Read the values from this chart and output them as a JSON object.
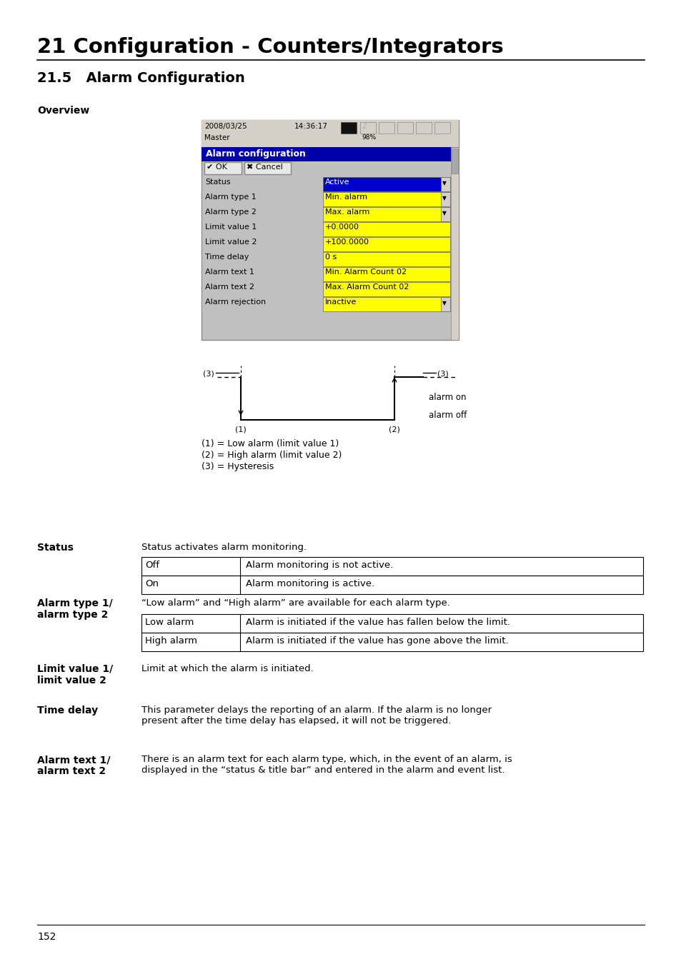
{
  "title": "21 Configuration - Counters/Integrators",
  "section": "21.5   Alarm Configuration",
  "overview_label": "Overview",
  "screenshot": {
    "header_date": "2008/03/25",
    "header_time": "14:36:17",
    "header_master": "Master",
    "header_battery": "98%",
    "title_bar": "Alarm configuration",
    "title_bar_color": "#0000aa",
    "ok_btn": "✔ OK",
    "cancel_btn": "✖ Cancel",
    "rows": [
      {
        "label": "Status",
        "value": "Active",
        "value_bg": "#0000cc",
        "value_color": "white",
        "has_arrow": true
      },
      {
        "label": "Alarm type 1",
        "value": "Min. alarm",
        "value_bg": "#ffff00",
        "value_color": "black",
        "has_arrow": true
      },
      {
        "label": "Alarm type 2",
        "value": "Max. alarm",
        "value_bg": "#ffff00",
        "value_color": "black",
        "has_arrow": true
      },
      {
        "label": "Limit value 1",
        "value": "+0.0000",
        "value_bg": "#ffff00",
        "value_color": "black",
        "has_arrow": false
      },
      {
        "label": "Limit value 2",
        "value": "+100.0000",
        "value_bg": "#ffff00",
        "value_color": "black",
        "has_arrow": false
      },
      {
        "label": "Time delay",
        "value": "0 s",
        "value_bg": "#ffff00",
        "value_color": "black",
        "has_arrow": false
      },
      {
        "label": "Alarm text 1",
        "value": "Min. Alarm Count 02",
        "value_bg": "#ffff00",
        "value_color": "black",
        "has_arrow": false
      },
      {
        "label": "Alarm text 2",
        "value": "Max. Alarm Count 02",
        "value_bg": "#ffff00",
        "value_color": "black",
        "has_arrow": false
      },
      {
        "label": "Alarm rejection",
        "value": "Inactive",
        "value_bg": "#ffff00",
        "value_color": "black",
        "has_arrow": true
      }
    ],
    "bg_color": "#c0c0c0",
    "label_color": "black"
  },
  "diagram_legend": [
    "(1) = Low alarm (limit value 1)",
    "(2) = High alarm (limit value 2)",
    "(3) = Hysteresis"
  ],
  "status_label": "Status",
  "status_desc": "Status activates alarm monitoring.",
  "status_table": [
    {
      "col1": "Off",
      "col2": "Alarm monitoring is not active."
    },
    {
      "col1": "On",
      "col2": "Alarm monitoring is active."
    }
  ],
  "alarm_type_label": "Alarm type 1/\nalarm type 2",
  "alarm_type_desc": "“Low alarm” and “High alarm” are available for each alarm type.",
  "alarm_type_table": [
    {
      "col1": "Low alarm",
      "col2": "Alarm is initiated if the value has fallen below the limit."
    },
    {
      "col1": "High alarm",
      "col2": "Alarm is initiated if the value has gone above the limit."
    }
  ],
  "limit_label": "Limit value 1/\nlimit value 2",
  "limit_desc": "Limit at which the alarm is initiated.",
  "time_delay_label": "Time delay",
  "time_delay_desc": "This parameter delays the reporting of an alarm. If the alarm is no longer\npresent after the time delay has elapsed, it will not be triggered.",
  "alarm_text_label": "Alarm text 1/\nalarm text 2",
  "alarm_text_desc": "There is an alarm text for each alarm type, which, in the event of an alarm, is\ndisplayed in the “status & title bar” and entered in the alarm and event list.",
  "page_number": "152",
  "bg_color": "#ffffff",
  "text_color": "#000000"
}
